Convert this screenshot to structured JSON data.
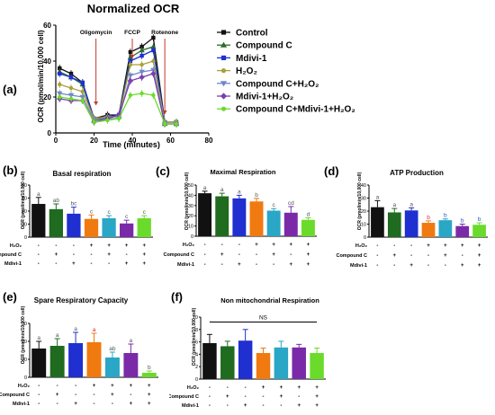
{
  "colors": {
    "control": "#111111",
    "compound_c": "#1f6b1f",
    "mdivi": "#1f2fd0",
    "h2o2": "#f07a10",
    "compound_c_h2o2": "#2aa6c6",
    "mdivi_h2o2": "#7a2aa8",
    "all": "#6adb2a",
    "line_control": "#111111",
    "line_compound_c": "#2d6b2d",
    "line_mdivi": "#1e2fd4",
    "line_h2o2": "#a9a038",
    "line_compound_c_h2o2": "#6f86c8",
    "line_mdivi_h2o2": "#7a3fb0",
    "line_all": "#6adb2a",
    "arrow": "#c0392b",
    "letter": "#555555",
    "letter_red": "#e0203a",
    "letter_blue": "#2a50d0"
  },
  "panel_a": {
    "panel_label": "(a)",
    "title": "Normalized OCR",
    "ylabel": "OCR (pmol/min/10,000 cell)",
    "xlabel": "Time (minutes)",
    "annotations": [
      "Oligomycin",
      "FCCP",
      "Rotenone"
    ],
    "legend": [
      "Control",
      "Compound C",
      "Mdivi-1",
      "H₂O₂",
      "Compound C+H₂O₂",
      "Mdivi-1+H₂O₂",
      "Compound C+Mdivi-1+H₂O₂"
    ]
  },
  "panel_b": {
    "panel_label": "(b)",
    "title": "Basal respiration",
    "ylabel": "OCR (pmol/min/10,000 cell)",
    "letters": [
      "a",
      "ab",
      "bc",
      "c",
      "c",
      "c",
      "c"
    ]
  },
  "panel_c": {
    "panel_label": "(c)",
    "title": "Maximal Respiration",
    "ylabel": "OCR (pmol/min/10,000 cell)",
    "letters": [
      "a",
      "a",
      "a",
      "b",
      "c",
      "cd",
      "d"
    ]
  },
  "panel_d": {
    "panel_label": "(d)",
    "title": "ATP Production",
    "ylabel": "OCR (pmol/min/10,000 cell)",
    "letters": [
      "a",
      "a",
      "a",
      "b",
      "b",
      "b",
      "b"
    ]
  },
  "panel_e": {
    "panel_label": "(e)",
    "title": "Spare Respiratory Capacity",
    "ylabel": "OCR (pmol/min/10,000 cell)",
    "letters": [
      "a",
      "a",
      "a",
      "a",
      "ab",
      "a",
      "b"
    ]
  },
  "panel_f": {
    "panel_label": "(f)",
    "title": "Non mitochondrial Respiration",
    "ylabel": "OCR (pmol/min/10,000 cell)",
    "ns": "NS"
  },
  "treatments": {
    "row_labels": [
      "H₂O₂",
      "Compound C",
      "Mdivi-1"
    ],
    "h2o2": [
      "-",
      "-",
      "-",
      "+",
      "+",
      "+",
      "+"
    ],
    "compound_c": [
      "-",
      "+",
      "-",
      "-",
      "+",
      "-",
      "+"
    ],
    "mdivi": [
      "-",
      "-",
      "+",
      "-",
      "-",
      "+",
      "+"
    ]
  },
  "chart_data": [
    {
      "type": "line",
      "title": "Normalized OCR",
      "xlabel": "Time (minutes)",
      "ylabel": "OCR (pmol/min/10,000 cell)",
      "xlim": [
        0,
        80
      ],
      "ylim": [
        0,
        60
      ],
      "xticks": [
        0,
        20,
        40,
        60,
        80
      ],
      "yticks": [
        0,
        20,
        40,
        60
      ],
      "x": [
        2,
        8,
        14,
        20,
        27,
        33,
        39,
        45,
        51,
        57,
        63
      ],
      "series": [
        {
          "name": "Control",
          "values": [
            36,
            33,
            28,
            8,
            10,
            10,
            45,
            48,
            53,
            6,
            6
          ]
        },
        {
          "name": "Compound C",
          "values": [
            34,
            31,
            27,
            7,
            9,
            9,
            42,
            46,
            48,
            5,
            5
          ]
        },
        {
          "name": "Mdivi-1",
          "values": [
            33,
            31,
            28,
            8,
            9,
            10,
            40,
            43,
            46,
            6,
            6
          ]
        },
        {
          "name": "H₂O₂",
          "values": [
            27,
            25,
            23,
            8,
            9,
            9,
            38,
            38,
            40,
            6,
            6
          ]
        },
        {
          "name": "Compound C+H₂O₂",
          "values": [
            22,
            21,
            20,
            7,
            8,
            8,
            32,
            34,
            35,
            5,
            5
          ]
        },
        {
          "name": "Mdivi-1+H₂O₂",
          "values": [
            19,
            18,
            18,
            6,
            8,
            10,
            29,
            31,
            33,
            5,
            5
          ]
        },
        {
          "name": "Compound C+Mdivi-1+H₂O₂",
          "values": [
            20,
            19,
            18,
            6,
            7,
            8,
            21,
            22,
            21,
            5,
            5
          ]
        }
      ],
      "annotations": [
        {
          "text": "Oligomycin",
          "x": 21
        },
        {
          "text": "FCCP",
          "x": 40
        },
        {
          "text": "Rotenone",
          "x": 57
        }
      ],
      "legend_position": "right"
    },
    {
      "type": "bar",
      "title": "Basal respiration",
      "ylabel": "OCR (pmol/min/10,000 cell)",
      "ylim": [
        0,
        40
      ],
      "yticks": [
        0,
        10,
        20,
        30,
        40
      ],
      "values": [
        25.5,
        21.5,
        18,
        14,
        14.5,
        10.5,
        14.5
      ],
      "errors": [
        5,
        4,
        5,
        3,
        2,
        2.5,
        2
      ]
    },
    {
      "type": "bar",
      "title": "Maximal Respiration",
      "ylabel": "OCR (pmol/min/10,000 cell)",
      "ylim": [
        0,
        50
      ],
      "yticks": [
        0,
        10,
        20,
        30,
        40,
        50
      ],
      "values": [
        42,
        39,
        37,
        34,
        25,
        23,
        16
      ],
      "errors": [
        2,
        3,
        3,
        3,
        2,
        6,
        2
      ]
    },
    {
      "type": "bar",
      "title": "ATP Production",
      "ylabel": "OCR (pmol/min/10,000 cell)",
      "ylim": [
        0,
        40
      ],
      "yticks": [
        0,
        10,
        20,
        30,
        40
      ],
      "values": [
        23,
        19,
        20.5,
        11,
        13,
        8.5,
        9.5
      ],
      "errors": [
        5,
        3,
        2,
        1.5,
        1,
        1.5,
        1.5
      ]
    },
    {
      "type": "bar",
      "title": "Spare Respiratory Capacity",
      "ylabel": "OCR (pmol/min/10,000 cell)",
      "ylim": [
        0,
        30
      ],
      "yticks": [
        0,
        10,
        20,
        30
      ],
      "values": [
        16,
        17.5,
        19,
        19.5,
        11,
        13.5,
        2.5
      ],
      "errors": [
        4,
        4,
        6,
        5,
        3,
        5,
        1
      ]
    },
    {
      "type": "bar",
      "title": "Non mitochondrial Respiration",
      "ylabel": "OCR (pmol/min/10,000 cell)",
      "ylim": [
        0,
        10
      ],
      "yticks": [
        0,
        2,
        4,
        6,
        8,
        10
      ],
      "values": [
        5.8,
        5.3,
        6.2,
        4.2,
        5.1,
        5.1,
        4.2
      ],
      "errors": [
        1.4,
        0.8,
        1.8,
        0.8,
        1,
        0.5,
        0.8
      ]
    }
  ]
}
